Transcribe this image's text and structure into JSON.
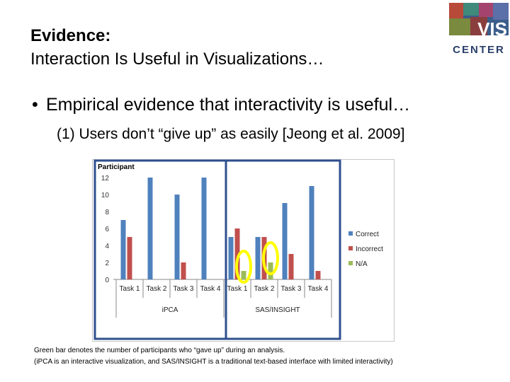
{
  "slide": {
    "title_line1": "Evidence:",
    "title_line2": "Interaction Is Useful in Visualizations…",
    "bullet_text": "Empirical evidence that interactivity is useful…",
    "sub_text": "(1) Users don’t “give up” as easily [Jeong et al. 2009]",
    "footnote_line1": "Green bar denotes the number of participants who “gave up” during an analysis.",
    "footnote_line2": "(iPCA is an interactive visualization, and SAS/INSIGHT is a traditional text-based interface with limited interactivity)"
  },
  "logo": {
    "text_vis": "VIS",
    "text_center": "CENTER",
    "icon": "vis-center-logo"
  },
  "colors": {
    "correct": "#4F81BD",
    "incorrect": "#C0504D",
    "na": "#9BBB59",
    "highlight": "#FFFF00",
    "frame": "#2F4F8F"
  },
  "chart_data": {
    "type": "bar",
    "title": "Participant",
    "categories": [
      "Task 1",
      "Task 2",
      "Task 3",
      "Task 4",
      "Task 1",
      "Task 2",
      "Task 3",
      "Task 4"
    ],
    "groups": [
      "iPCA",
      "SAS/INSIGHT"
    ],
    "series": [
      {
        "name": "Correct",
        "values": [
          7,
          12,
          10,
          12,
          5,
          5,
          9,
          11
        ]
      },
      {
        "name": "Incorrect",
        "values": [
          5,
          0,
          2,
          0,
          6,
          5,
          3,
          1
        ]
      },
      {
        "name": "N/A",
        "values": [
          0,
          0,
          0,
          0,
          1,
          2,
          0,
          0
        ]
      }
    ],
    "ylim": [
      0,
      12
    ],
    "yticks": [
      "0",
      "2",
      "4",
      "6",
      "8",
      "10",
      "12"
    ],
    "legend_position": "right",
    "grid": false
  }
}
